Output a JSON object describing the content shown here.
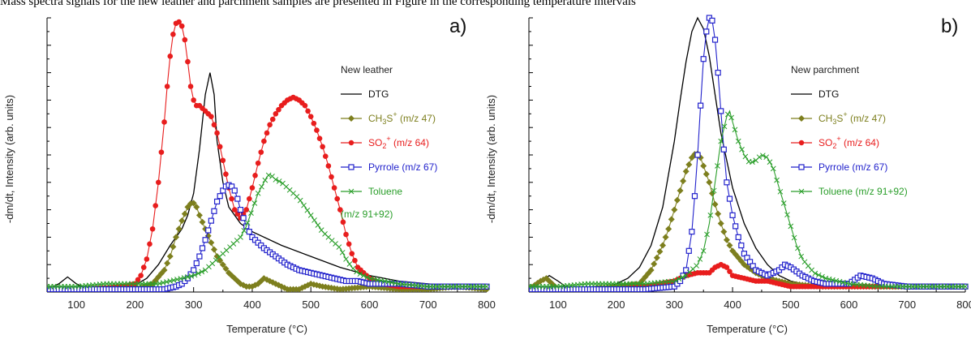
{
  "header_fragment": "Mass spectra signals for the new leather and parchment samples are presented in Figure in the corresponding temperature intervals",
  "chart_data": [
    {
      "type": "line",
      "panel_label": "a)",
      "legend_title": "New leather",
      "xlabel": "Temperature (°C)",
      "ylabel": "-dm/dt, Intensity (arb. units)",
      "xlim": [
        50,
        800
      ],
      "ylim": [
        0,
        1.0
      ],
      "x_ticks": [
        100,
        200,
        300,
        400,
        500,
        600,
        700,
        800
      ],
      "grid": false,
      "legend_position": "right",
      "series": [
        {
          "name": "DTG",
          "label_main": "DTG",
          "label_sub": "",
          "label_sup": "",
          "label_tail": "",
          "color": "#000000",
          "marker": "none",
          "x": [
            50,
            70,
            85,
            100,
            120,
            150,
            180,
            200,
            220,
            240,
            260,
            280,
            290,
            300,
            310,
            320,
            328,
            335,
            340,
            350,
            360,
            380,
            400,
            450,
            500,
            550,
            600,
            650,
            700,
            750,
            800
          ],
          "y": [
            0.01,
            0.03,
            0.055,
            0.03,
            0.01,
            0.01,
            0.015,
            0.025,
            0.05,
            0.1,
            0.17,
            0.23,
            0.28,
            0.36,
            0.52,
            0.72,
            0.8,
            0.72,
            0.55,
            0.4,
            0.31,
            0.25,
            0.22,
            0.17,
            0.13,
            0.09,
            0.06,
            0.04,
            0.03,
            0.02,
            0.01
          ]
        },
        {
          "name": "CH3S+ (m/z 47)",
          "label_main": "CH",
          "label_sub": "3",
          "label_sup": "+",
          "label_tail": " (m/z 47)",
          "label_mid": "S",
          "color": "#7d7f1e",
          "marker": "diamond",
          "x": [
            50,
            100,
            150,
            200,
            230,
            250,
            260,
            270,
            280,
            290,
            298,
            305,
            310,
            320,
            330,
            340,
            350,
            360,
            370,
            380,
            390,
            400,
            410,
            420,
            430,
            440,
            450,
            460,
            470,
            480,
            490,
            500,
            520,
            550,
            600,
            650,
            700,
            750,
            800
          ],
          "y": [
            0.01,
            0.01,
            0.01,
            0.01,
            0.03,
            0.08,
            0.13,
            0.2,
            0.26,
            0.31,
            0.33,
            0.31,
            0.28,
            0.23,
            0.18,
            0.13,
            0.1,
            0.07,
            0.05,
            0.03,
            0.02,
            0.02,
            0.03,
            0.05,
            0.04,
            0.03,
            0.02,
            0.01,
            0.01,
            0.01,
            0.02,
            0.03,
            0.02,
            0.01,
            0.02,
            0.01,
            0.01,
            0.02,
            0.01
          ]
        },
        {
          "name": "SO2+ (m/z 64)",
          "label_main": "SO",
          "label_sub": "2",
          "label_sup": "+",
          "label_tail": " (m/z 64)",
          "label_mid": "",
          "color": "#e81d1d",
          "marker": "circle",
          "x": [
            50,
            100,
            150,
            180,
            200,
            210,
            220,
            230,
            240,
            250,
            255,
            260,
            265,
            270,
            275,
            280,
            285,
            290,
            295,
            300,
            305,
            310,
            320,
            330,
            340,
            350,
            360,
            370,
            380,
            390,
            400,
            410,
            420,
            430,
            440,
            450,
            460,
            470,
            480,
            490,
            500,
            510,
            520,
            530,
            540,
            550,
            560,
            570,
            580,
            600,
            620,
            650,
            700,
            750,
            800
          ],
          "y": [
            0.01,
            0.01,
            0.015,
            0.02,
            0.03,
            0.06,
            0.12,
            0.23,
            0.4,
            0.62,
            0.75,
            0.86,
            0.94,
            0.98,
            0.985,
            0.97,
            0.92,
            0.84,
            0.75,
            0.7,
            0.68,
            0.68,
            0.66,
            0.64,
            0.58,
            0.48,
            0.38,
            0.3,
            0.27,
            0.3,
            0.38,
            0.47,
            0.55,
            0.61,
            0.65,
            0.68,
            0.7,
            0.71,
            0.7,
            0.68,
            0.64,
            0.59,
            0.53,
            0.46,
            0.38,
            0.3,
            0.21,
            0.14,
            0.09,
            0.05,
            0.03,
            0.02,
            0.02,
            0.02,
            0.02
          ]
        },
        {
          "name": "Pyrrole (m/z 67)",
          "label_main": "Pyrrole (m/z 67)",
          "label_sub": "",
          "label_sup": "",
          "label_tail": "",
          "color": "#2222cc",
          "marker": "square",
          "x": [
            50,
            100,
            150,
            200,
            250,
            270,
            280,
            290,
            300,
            310,
            320,
            330,
            340,
            350,
            355,
            360,
            365,
            370,
            375,
            380,
            390,
            400,
            420,
            440,
            460,
            480,
            500,
            520,
            540,
            560,
            580,
            600,
            650,
            700,
            750,
            800
          ],
          "y": [
            0.01,
            0.01,
            0.01,
            0.01,
            0.01,
            0.02,
            0.03,
            0.05,
            0.08,
            0.13,
            0.19,
            0.26,
            0.33,
            0.37,
            0.385,
            0.39,
            0.385,
            0.37,
            0.34,
            0.3,
            0.24,
            0.2,
            0.16,
            0.13,
            0.1,
            0.08,
            0.07,
            0.06,
            0.05,
            0.04,
            0.04,
            0.03,
            0.03,
            0.02,
            0.02,
            0.02
          ]
        },
        {
          "name": "Toluene (m/z 91+92)",
          "label_main": "Toluene",
          "label_sub": "",
          "label_sup": "",
          "label_tail": "",
          "label_line2": "(m/z 91+92)",
          "color": "#2a9e2a",
          "marker": "cross",
          "x": [
            50,
            100,
            150,
            200,
            240,
            260,
            280,
            300,
            320,
            340,
            350,
            360,
            370,
            380,
            390,
            400,
            410,
            420,
            425,
            430,
            435,
            440,
            450,
            460,
            470,
            480,
            490,
            500,
            510,
            520,
            530,
            540,
            550,
            560,
            570,
            580,
            600,
            650,
            700,
            750,
            800
          ],
          "y": [
            0.02,
            0.02,
            0.03,
            0.03,
            0.03,
            0.04,
            0.05,
            0.06,
            0.08,
            0.12,
            0.14,
            0.16,
            0.18,
            0.2,
            0.24,
            0.3,
            0.36,
            0.4,
            0.42,
            0.43,
            0.42,
            0.41,
            0.4,
            0.38,
            0.36,
            0.34,
            0.31,
            0.28,
            0.25,
            0.22,
            0.2,
            0.18,
            0.16,
            0.12,
            0.09,
            0.07,
            0.05,
            0.03,
            0.02,
            0.02,
            0.02
          ]
        }
      ]
    },
    {
      "type": "line",
      "panel_label": "b)",
      "legend_title": "New parchment",
      "xlabel": "Temperature (°C)",
      "ylabel": "-dm/dt, Intensity (arb. units)",
      "xlim": [
        50,
        800
      ],
      "ylim": [
        0,
        1.0
      ],
      "x_ticks": [
        100,
        200,
        300,
        400,
        500,
        600,
        700,
        800
      ],
      "grid": false,
      "legend_position": "right",
      "series": [
        {
          "name": "DTG",
          "label_main": "DTG",
          "label_sub": "",
          "label_sup": "",
          "label_tail": "",
          "color": "#000000",
          "marker": "none",
          "x": [
            50,
            70,
            85,
            100,
            120,
            150,
            180,
            200,
            220,
            240,
            260,
            280,
            300,
            310,
            320,
            330,
            340,
            350,
            360,
            370,
            380,
            400,
            420,
            440,
            460,
            480,
            500,
            520,
            550,
            580,
            600,
            650,
            700,
            750,
            800
          ],
          "y": [
            0.01,
            0.035,
            0.06,
            0.04,
            0.01,
            0.01,
            0.015,
            0.03,
            0.05,
            0.09,
            0.17,
            0.31,
            0.55,
            0.7,
            0.84,
            0.95,
            1.0,
            0.96,
            0.86,
            0.72,
            0.58,
            0.38,
            0.25,
            0.16,
            0.1,
            0.06,
            0.04,
            0.03,
            0.02,
            0.02,
            0.02,
            0.02,
            0.02,
            0.02,
            0.02
          ]
        },
        {
          "name": "CH3S+ (m/z 47)",
          "label_main": "CH",
          "label_sub": "3",
          "label_sup": "+",
          "label_tail": " (m/z 47)",
          "label_mid": "S",
          "color": "#7d7f1e",
          "marker": "diamond",
          "x": [
            50,
            70,
            80,
            90,
            100,
            150,
            200,
            240,
            260,
            280,
            290,
            300,
            310,
            320,
            330,
            338,
            345,
            350,
            360,
            370,
            380,
            390,
            400,
            420,
            440,
            460,
            480,
            500,
            550,
            600,
            650,
            700,
            750,
            800
          ],
          "y": [
            0.01,
            0.04,
            0.05,
            0.03,
            0.01,
            0.01,
            0.02,
            0.03,
            0.08,
            0.17,
            0.23,
            0.3,
            0.37,
            0.44,
            0.49,
            0.51,
            0.49,
            0.46,
            0.4,
            0.32,
            0.25,
            0.19,
            0.15,
            0.1,
            0.07,
            0.05,
            0.04,
            0.03,
            0.02,
            0.02,
            0.02,
            0.02,
            0.02,
            0.02
          ]
        },
        {
          "name": "SO2+ (m/z 64)",
          "label_main": "SO",
          "label_sub": "2",
          "label_sup": "+",
          "label_tail": " (m/z 64)",
          "label_mid": "",
          "color": "#e81d1d",
          "marker": "circle",
          "x": [
            50,
            100,
            150,
            200,
            250,
            300,
            320,
            340,
            360,
            370,
            380,
            390,
            400,
            420,
            440,
            460,
            480,
            500,
            550,
            600,
            650,
            700,
            750,
            800
          ],
          "y": [
            0.01,
            0.01,
            0.01,
            0.01,
            0.02,
            0.04,
            0.06,
            0.07,
            0.07,
            0.09,
            0.1,
            0.09,
            0.06,
            0.05,
            0.04,
            0.04,
            0.03,
            0.02,
            0.02,
            0.02,
            0.02,
            0.02,
            0.02,
            0.02
          ]
        },
        {
          "name": "Pyrrole (m/z 67)",
          "label_main": "Pyrrole (m/z 67)",
          "label_sub": "",
          "label_sup": "",
          "label_tail": "",
          "color": "#2222cc",
          "marker": "square",
          "x": [
            50,
            100,
            150,
            200,
            250,
            300,
            310,
            320,
            330,
            335,
            340,
            345,
            350,
            355,
            360,
            365,
            370,
            375,
            380,
            385,
            390,
            400,
            410,
            420,
            440,
            460,
            480,
            490,
            500,
            520,
            540,
            560,
            580,
            600,
            620,
            640,
            660,
            700,
            750,
            800
          ],
          "y": [
            0.01,
            0.01,
            0.01,
            0.01,
            0.01,
            0.02,
            0.04,
            0.08,
            0.22,
            0.35,
            0.5,
            0.68,
            0.85,
            0.95,
            1.0,
            0.99,
            0.92,
            0.8,
            0.66,
            0.52,
            0.4,
            0.28,
            0.2,
            0.14,
            0.08,
            0.06,
            0.08,
            0.1,
            0.09,
            0.06,
            0.04,
            0.03,
            0.03,
            0.03,
            0.06,
            0.05,
            0.03,
            0.02,
            0.02,
            0.02
          ]
        },
        {
          "name": "Toluene (m/z 91+92)",
          "label_main": "Toluene (m/z 91+92)",
          "label_sub": "",
          "label_sup": "",
          "label_tail": "",
          "color": "#2a9e2a",
          "marker": "cross",
          "x": [
            50,
            100,
            150,
            200,
            250,
            300,
            320,
            340,
            350,
            360,
            370,
            380,
            390,
            395,
            400,
            410,
            420,
            430,
            440,
            450,
            460,
            470,
            480,
            490,
            500,
            510,
            520,
            540,
            560,
            580,
            600,
            650,
            700,
            750,
            800
          ],
          "y": [
            0.02,
            0.02,
            0.03,
            0.03,
            0.03,
            0.04,
            0.06,
            0.1,
            0.15,
            0.25,
            0.4,
            0.55,
            0.64,
            0.66,
            0.62,
            0.55,
            0.5,
            0.47,
            0.48,
            0.5,
            0.49,
            0.45,
            0.38,
            0.31,
            0.24,
            0.17,
            0.12,
            0.07,
            0.05,
            0.04,
            0.03,
            0.02,
            0.02,
            0.02,
            0.02
          ]
        }
      ]
    }
  ]
}
